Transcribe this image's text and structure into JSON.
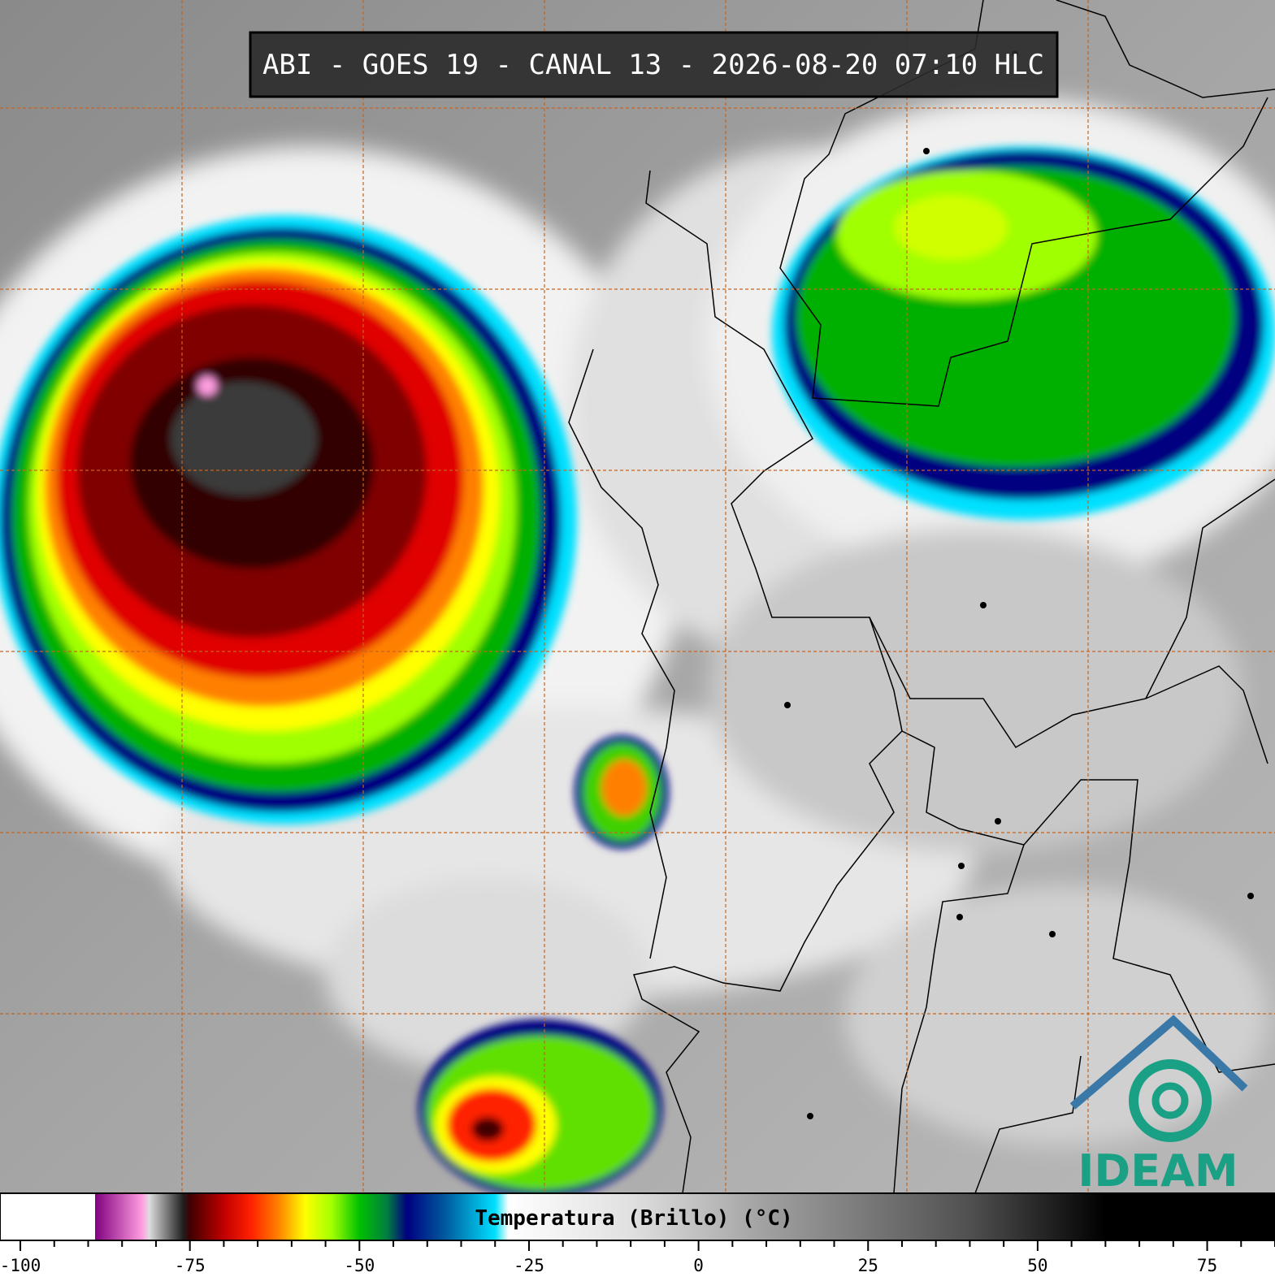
{
  "header": {
    "title": "ABI - GOES 19 - CANAL 13 - 2026-08-20 07:10 HLC"
  },
  "logo": {
    "text": "IDEAM"
  },
  "chart_data": {
    "type": "colorbar",
    "label": "Temperatura (Brillo) (°C)",
    "xlim": [
      -103,
      85
    ],
    "xticks": [
      -100,
      -75,
      -50,
      -25,
      0,
      25,
      50,
      75
    ],
    "minor_xticks": [
      -95,
      -90,
      -85,
      -80,
      -70,
      -65,
      -60,
      -55,
      -45,
      -40,
      -35,
      -30,
      -20,
      -15,
      -10,
      -5,
      5,
      10,
      15,
      20,
      30,
      35,
      40,
      45,
      55,
      60,
      65,
      70,
      80,
      85
    ],
    "stops": [
      {
        "value": -103,
        "color": "#ffffff"
      },
      {
        "value": -89,
        "color": "#ffffff"
      },
      {
        "value": -89,
        "color": "#800080"
      },
      {
        "value": -82,
        "color": "#ff9ee0"
      },
      {
        "value": -81,
        "color": "#dddddd"
      },
      {
        "value": -76,
        "color": "#202020"
      },
      {
        "value": -75,
        "color": "#400000"
      },
      {
        "value": -70,
        "color": "#c00000"
      },
      {
        "value": -66,
        "color": "#ff2000"
      },
      {
        "value": -62,
        "color": "#ff8000"
      },
      {
        "value": -58,
        "color": "#ffff00"
      },
      {
        "value": -54,
        "color": "#a0ff00"
      },
      {
        "value": -50,
        "color": "#00c000"
      },
      {
        "value": -46,
        "color": "#008040"
      },
      {
        "value": -43,
        "color": "#000080"
      },
      {
        "value": -37,
        "color": "#0060a0"
      },
      {
        "value": -30,
        "color": "#00e0ff"
      },
      {
        "value": -28,
        "color": "#ffffff"
      },
      {
        "value": -10,
        "color": "#e0e0e0"
      },
      {
        "value": 10,
        "color": "#a0a0a0"
      },
      {
        "value": 40,
        "color": "#505050"
      },
      {
        "value": 60,
        "color": "#000000"
      },
      {
        "value": 85,
        "color": "#000000"
      }
    ]
  }
}
